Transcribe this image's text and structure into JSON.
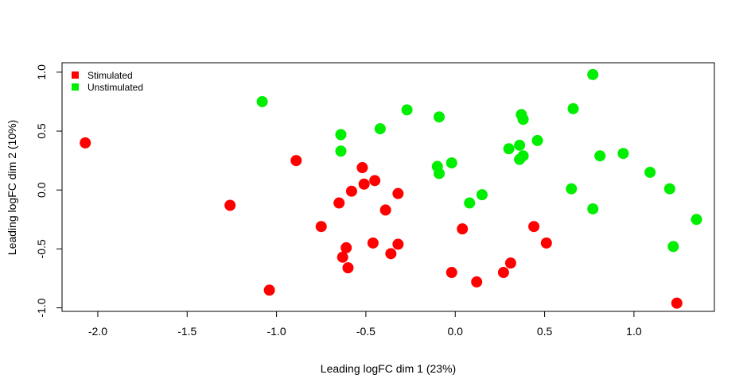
{
  "chart_data": {
    "type": "scatter",
    "xlabel": "Leading logFC dim 1 (23%)",
    "ylabel": "Leading logFC dim 2 (10%)",
    "xlim": [
      -2.2,
      1.45
    ],
    "ylim": [
      -1.03,
      1.08
    ],
    "xticks": [
      -2.0,
      -1.5,
      -1.0,
      -0.5,
      0.0,
      0.5,
      1.0
    ],
    "xtick_labels": [
      "-2.0",
      "-1.5",
      "-1.0",
      "-0.5",
      "0.0",
      "0.5",
      "1.0"
    ],
    "yticks": [
      -1.0,
      -0.5,
      0.0,
      0.5,
      1.0
    ],
    "ytick_labels": [
      "-1.0",
      "-0.5",
      "0.0",
      "0.5",
      "1.0"
    ],
    "grid": false,
    "legend_position": "top-left",
    "series": [
      {
        "name": "Stimulated",
        "color": "#ff0000",
        "points": [
          [
            -2.07,
            0.4
          ],
          [
            -1.26,
            -0.13
          ],
          [
            -1.04,
            -0.85
          ],
          [
            -0.89,
            0.25
          ],
          [
            -0.75,
            -0.31
          ],
          [
            -0.65,
            -0.11
          ],
          [
            -0.63,
            -0.57
          ],
          [
            -0.61,
            -0.49
          ],
          [
            -0.6,
            -0.66
          ],
          [
            -0.58,
            -0.01
          ],
          [
            -0.52,
            0.19
          ],
          [
            -0.51,
            0.05
          ],
          [
            -0.46,
            -0.45
          ],
          [
            -0.45,
            0.08
          ],
          [
            -0.39,
            -0.17
          ],
          [
            -0.36,
            -0.54
          ],
          [
            -0.32,
            -0.03
          ],
          [
            -0.32,
            -0.46
          ],
          [
            -0.02,
            -0.7
          ],
          [
            0.04,
            -0.33
          ],
          [
            0.12,
            -0.78
          ],
          [
            0.27,
            -0.7
          ],
          [
            0.31,
            -0.62
          ],
          [
            0.44,
            -0.31
          ],
          [
            0.51,
            -0.45
          ],
          [
            1.24,
            -0.96
          ]
        ]
      },
      {
        "name": "Unstimulated",
        "color": "#00ee00",
        "points": [
          [
            -1.08,
            0.75
          ],
          [
            -0.64,
            0.47
          ],
          [
            -0.64,
            0.33
          ],
          [
            -0.42,
            0.52
          ],
          [
            -0.27,
            0.68
          ],
          [
            -0.1,
            0.2
          ],
          [
            -0.09,
            0.14
          ],
          [
            -0.09,
            0.62
          ],
          [
            -0.02,
            0.23
          ],
          [
            0.08,
            -0.11
          ],
          [
            0.15,
            -0.04
          ],
          [
            0.3,
            0.35
          ],
          [
            0.36,
            0.26
          ],
          [
            0.36,
            0.38
          ],
          [
            0.37,
            0.64
          ],
          [
            0.38,
            0.29
          ],
          [
            0.38,
            0.6
          ],
          [
            0.46,
            0.42
          ],
          [
            0.65,
            0.01
          ],
          [
            0.66,
            0.69
          ],
          [
            0.77,
            0.98
          ],
          [
            0.77,
            -0.16
          ],
          [
            0.81,
            0.29
          ],
          [
            0.94,
            0.31
          ],
          [
            1.09,
            0.15
          ],
          [
            1.2,
            0.01
          ],
          [
            1.22,
            -0.48
          ],
          [
            1.35,
            -0.25
          ]
        ]
      }
    ]
  }
}
